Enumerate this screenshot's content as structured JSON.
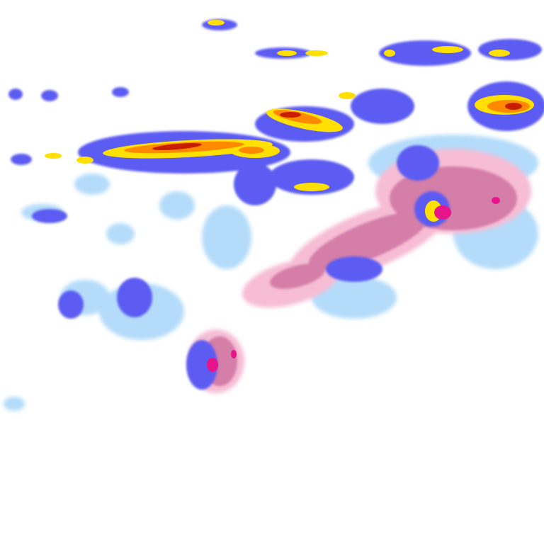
{
  "map": {
    "layer": "precipitation-radar",
    "palette": {
      "light_rain": "#aad4f7",
      "moderate_rain": "#5a5af0",
      "heavy_rain": "#3a2ad8",
      "intense": "#ffe000",
      "very_intense": "#ff8c00",
      "extreme": "#c81e00",
      "light_mixed": "#f4b8d0",
      "moderate_mixed": "#d27aa8",
      "heavy_mixed": "#e8148c"
    }
  }
}
